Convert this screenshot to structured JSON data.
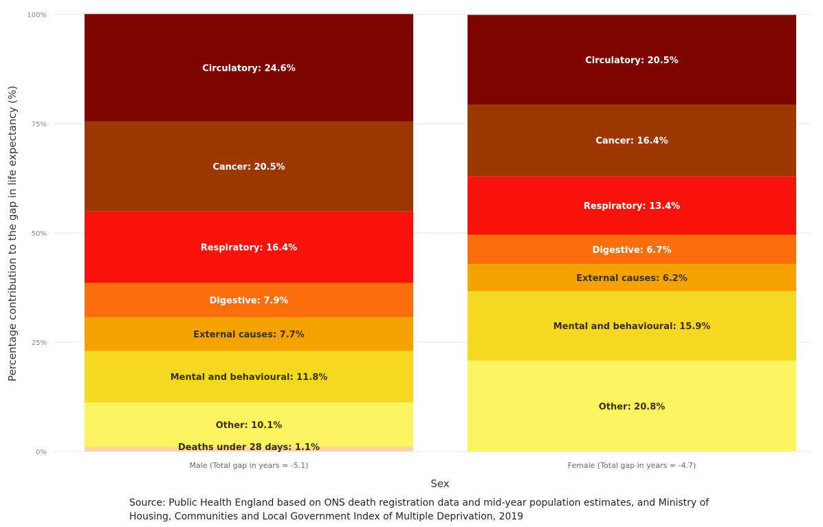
{
  "chart_data": {
    "type": "bar",
    "stacked": true,
    "ylabel": "Percentage contribution to the gap in life expectancy (%)",
    "xlabel": "Sex",
    "ylim": [
      0,
      100
    ],
    "y_ticks": [
      "0%",
      "25%",
      "50%",
      "75%",
      "100%"
    ],
    "categories": [
      "Male (Total gap in years = -5.1)",
      "Female (Total gap in years = -4.7)"
    ],
    "series": [
      {
        "name": "Deaths under 28 days",
        "color": "#ffd4a6",
        "values": [
          1.1,
          0
        ],
        "labels": [
          "Deaths under 28 days: 1.1%",
          ""
        ]
      },
      {
        "name": "Other",
        "color": "#fcf460",
        "values": [
          10.1,
          20.8
        ],
        "labels": [
          "Other: 10.1%",
          "Other: 20.8%"
        ]
      },
      {
        "name": "Mental and behavioural",
        "color": "#f5d822",
        "values": [
          11.8,
          15.9
        ],
        "labels": [
          "Mental and behavioural: 11.8%",
          "Mental and behavioural: 15.9%"
        ]
      },
      {
        "name": "External causes",
        "color": "#f5a200",
        "values": [
          7.7,
          6.2
        ],
        "labels": [
          "External causes: 7.7%",
          "External causes: 6.2%"
        ]
      },
      {
        "name": "Digestive",
        "color": "#fb6e0c",
        "values": [
          7.9,
          6.7
        ],
        "labels": [
          "Digestive: 7.9%",
          "Digestive: 6.7%"
        ]
      },
      {
        "name": "Respiratory",
        "color": "#f7130c",
        "values": [
          16.4,
          13.4
        ],
        "labels": [
          "Respiratory: 16.4%",
          "Respiratory: 13.4%"
        ]
      },
      {
        "name": "Cancer",
        "color": "#9d3804",
        "values": [
          20.5,
          16.4
        ],
        "labels": [
          "Cancer: 20.5%",
          "Cancer: 16.4%"
        ]
      },
      {
        "name": "Circulatory",
        "color": "#7e0400",
        "values": [
          24.6,
          20.5
        ],
        "labels": [
          "Circulatory: 24.6%",
          "Circulatory: 20.5%"
        ]
      }
    ],
    "label_colors": {
      "dark": "#ffffff",
      "light": "#3a3000"
    },
    "grid": true
  },
  "source": {
    "line1": "Source: Public Health England based on ONS death registration data and mid-year population estimates, and Ministry of",
    "line2": "Housing, Communities and Local Government Index of Multiple Deprivation, 2019"
  }
}
